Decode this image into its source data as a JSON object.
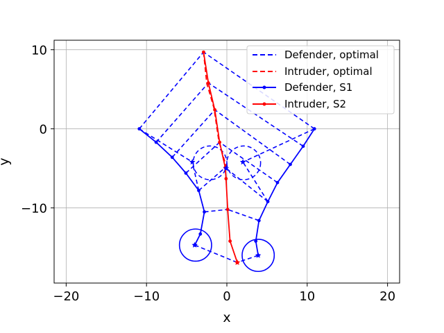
{
  "chart_data": {
    "type": "line",
    "title": "",
    "xlabel": "x",
    "ylabel": "y",
    "xlim": [
      -21.5,
      21.5
    ],
    "ylim": [
      -19.5,
      11.2
    ],
    "xticks": [
      -20,
      -10,
      0,
      10,
      20
    ],
    "xtick_labels": [
      "−20",
      "−10",
      "0",
      "10",
      "20"
    ],
    "yticks": [
      -10,
      0,
      10
    ],
    "ytick_labels": [
      "−10",
      "0",
      "10"
    ],
    "grid": true,
    "legend_position": "top-right",
    "legend": [
      {
        "label": "Defender, optimal",
        "color": "#0000ff",
        "style": "dashed"
      },
      {
        "label": "Intruder, optimal",
        "color": "#ff0000",
        "style": "dashed"
      },
      {
        "label": "Defender, S1",
        "color": "#0000ff",
        "style": "solid-marker"
      },
      {
        "label": "Intruder, S2",
        "color": "#ff0000",
        "style": "solid-marker"
      }
    ],
    "series": [
      {
        "name": "Defender, S1",
        "color": "#0000ff",
        "style": "solid-marker",
        "points": [
          [
            -10.9,
            0.0
          ],
          [
            -8.8,
            -1.7
          ],
          [
            -6.8,
            -3.6
          ],
          [
            -5.1,
            -5.6
          ],
          [
            -3.5,
            -7.8
          ],
          [
            -2.8,
            -10.5
          ],
          [
            -3.3,
            -13.3
          ],
          [
            -4.0,
            -14.7
          ]
        ]
      },
      {
        "name": "Defender, S1",
        "color": "#0000ff",
        "style": "solid-marker",
        "points": [
          [
            10.9,
            0.0
          ],
          [
            9.5,
            -2.2
          ],
          [
            7.9,
            -4.5
          ],
          [
            6.3,
            -6.8
          ],
          [
            5.1,
            -9.2
          ],
          [
            4.0,
            -11.6
          ],
          [
            3.6,
            -14.2
          ],
          [
            3.9,
            -16.0
          ]
        ]
      },
      {
        "name": "Intruder, S2",
        "color": "#ff0000",
        "style": "solid-marker",
        "points": [
          [
            -2.9,
            9.7
          ],
          [
            -2.3,
            5.8
          ],
          [
            -1.5,
            2.4
          ],
          [
            -0.9,
            -1.7
          ],
          [
            -0.2,
            -4.9
          ],
          [
            -0.1,
            -6.3
          ],
          [
            0.1,
            -10.2
          ],
          [
            0.4,
            -14.2
          ],
          [
            1.3,
            -16.9
          ]
        ]
      },
      {
        "name": "Intruder, optimal",
        "color": "#ff0000",
        "style": "dashed",
        "points": [
          [
            -2.9,
            9.7
          ],
          [
            -2.5,
            5.8
          ],
          [
            -1.6,
            2.6
          ],
          [
            -1.0,
            -1.5
          ],
          [
            -0.1,
            -4.7
          ]
        ]
      }
    ],
    "dashed_segments": [
      [
        [
          -10.9,
          0.0
        ],
        [
          -2.9,
          9.7
        ]
      ],
      [
        [
          10.9,
          0.0
        ],
        [
          -2.9,
          9.7
        ]
      ],
      [
        [
          -8.8,
          -1.7
        ],
        [
          -2.3,
          5.8
        ]
      ],
      [
        [
          9.5,
          -2.2
        ],
        [
          -2.3,
          5.8
        ]
      ],
      [
        [
          -6.8,
          -3.6
        ],
        [
          -1.5,
          2.4
        ]
      ],
      [
        [
          7.9,
          -4.5
        ],
        [
          -1.5,
          2.4
        ]
      ],
      [
        [
          -5.1,
          -5.6
        ],
        [
          -0.9,
          -1.7
        ]
      ],
      [
        [
          6.3,
          -6.8
        ],
        [
          -0.9,
          -1.7
        ]
      ],
      [
        [
          -3.5,
          -7.8
        ],
        [
          -0.2,
          -4.9
        ]
      ],
      [
        [
          5.1,
          -9.2
        ],
        [
          -0.2,
          -4.9
        ]
      ],
      [
        [
          -2.8,
          -10.5
        ],
        [
          0.1,
          -10.2
        ]
      ],
      [
        [
          4.0,
          -11.6
        ],
        [
          0.1,
          -10.2
        ]
      ],
      [
        [
          -4.0,
          -14.7
        ],
        [
          1.3,
          -16.9
        ]
      ],
      [
        [
          3.9,
          -16.0
        ],
        [
          1.3,
          -16.9
        ]
      ],
      [
        [
          -10.9,
          0.0
        ],
        [
          -4.3,
          -4.2
        ]
      ],
      [
        [
          10.9,
          0.0
        ],
        [
          2.0,
          -4.2
        ]
      ],
      [
        [
          -3.5,
          -7.8
        ],
        [
          -4.3,
          -4.2
        ]
      ],
      [
        [
          5.1,
          -9.2
        ],
        [
          2.0,
          -4.2
        ]
      ]
    ],
    "dashed_circles": [
      {
        "center": [
          -2.1,
          -4.3
        ],
        "radius": 2.1
      },
      {
        "center": [
          2.1,
          -4.3
        ],
        "radius": 2.1
      }
    ],
    "solid_circles": [
      {
        "center": [
          -3.9,
          -14.7
        ],
        "radius": 2.0
      },
      {
        "center": [
          3.9,
          -16.0
        ],
        "radius": 2.0
      }
    ],
    "star_markers": [
      {
        "position": [
          -4.0,
          -14.7
        ],
        "color": "#0000ff"
      },
      {
        "position": [
          3.9,
          -16.0
        ],
        "color": "#0000ff"
      },
      {
        "position": [
          -4.3,
          -4.2
        ],
        "color": "#0000ff"
      },
      {
        "position": [
          2.0,
          -4.2
        ],
        "color": "#0000ff"
      },
      {
        "position": [
          -0.1,
          -5.0
        ],
        "color": "#0000ff"
      },
      {
        "position": [
          1.3,
          -16.9
        ],
        "color": "#ff0000"
      }
    ]
  }
}
